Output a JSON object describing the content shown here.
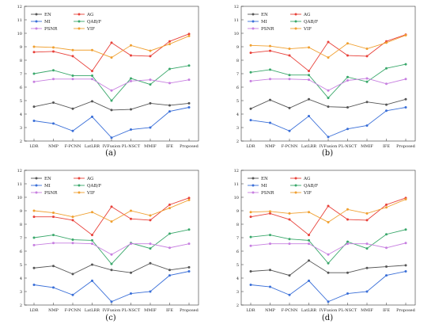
{
  "chart_data": [
    {
      "type": "line",
      "panel_label": "(a)",
      "categories": [
        "LDR",
        "NMP",
        "F-PCNN",
        "LatLRR",
        "IVFusion",
        "PL-NSCT",
        "MMIF",
        "IFE",
        "Proposed"
      ],
      "ylim": [
        2,
        12
      ],
      "yticks": [
        2,
        3,
        4,
        5,
        6,
        7,
        8,
        9,
        10,
        11,
        12
      ],
      "grid": false,
      "legend": "top-left",
      "series": [
        {
          "name": "EN",
          "color": "#555555",
          "values": [
            4.55,
            4.85,
            4.4,
            4.95,
            4.3,
            4.35,
            4.8,
            4.65,
            4.8
          ]
        },
        {
          "name": "AG",
          "color": "#e8413a",
          "values": [
            8.6,
            8.65,
            8.3,
            7.2,
            9.3,
            8.35,
            8.3,
            9.4,
            9.95
          ]
        },
        {
          "name": "MI",
          "color": "#3a6fd8",
          "values": [
            3.5,
            3.3,
            2.75,
            3.8,
            2.25,
            2.85,
            3.0,
            4.2,
            4.5
          ]
        },
        {
          "name": "QAB/F",
          "color": "#3aa86b",
          "values": [
            7.0,
            7.25,
            6.85,
            6.85,
            5.0,
            6.65,
            6.2,
            7.35,
            7.6
          ]
        },
        {
          "name": "PSNR",
          "color": "#c77fe0",
          "values": [
            6.4,
            6.6,
            6.6,
            6.6,
            5.75,
            6.45,
            6.55,
            6.3,
            6.55
          ]
        },
        {
          "name": "VIF",
          "color": "#f0a030",
          "values": [
            9.0,
            8.95,
            8.75,
            8.75,
            8.2,
            9.1,
            8.7,
            9.2,
            9.8
          ]
        }
      ]
    },
    {
      "type": "line",
      "panel_label": "(b)",
      "categories": [
        "LDR",
        "NMP",
        "F-PCNN",
        "LatLRR",
        "IVFusion",
        "PL-NSCT",
        "MMIF",
        "IFE",
        "Proposed"
      ],
      "ylim": [
        2,
        12
      ],
      "yticks": [
        2,
        3,
        4,
        5,
        6,
        7,
        8,
        9,
        10,
        11,
        12
      ],
      "grid": false,
      "legend": "top-left",
      "series": [
        {
          "name": "EN",
          "color": "#555555",
          "values": [
            4.4,
            5.05,
            4.45,
            5.1,
            4.55,
            4.5,
            4.9,
            4.7,
            5.1
          ]
        },
        {
          "name": "AG",
          "color": "#e8413a",
          "values": [
            8.55,
            8.7,
            8.35,
            7.2,
            9.35,
            8.35,
            8.3,
            9.4,
            9.9
          ]
        },
        {
          "name": "MI",
          "color": "#3a6fd8",
          "values": [
            3.55,
            3.35,
            2.75,
            3.85,
            2.3,
            2.9,
            3.15,
            4.25,
            4.5
          ]
        },
        {
          "name": "QAB/F",
          "color": "#3aa86b",
          "values": [
            7.1,
            7.3,
            6.9,
            6.9,
            5.2,
            6.75,
            6.4,
            7.4,
            7.7
          ]
        },
        {
          "name": "PSNR",
          "color": "#c77fe0",
          "values": [
            6.45,
            6.6,
            6.6,
            6.55,
            5.75,
            6.5,
            6.65,
            6.25,
            6.6
          ]
        },
        {
          "name": "VIF",
          "color": "#f0a030",
          "values": [
            9.1,
            9.05,
            8.85,
            8.95,
            8.2,
            9.25,
            8.85,
            9.3,
            9.85
          ]
        }
      ]
    },
    {
      "type": "line",
      "panel_label": "(c)",
      "categories": [
        "LDR",
        "NMP",
        "F-PCNN",
        "LatLRR",
        "IVFusion",
        "PL-NSCT",
        "MMIF",
        "IFE",
        "Proposed"
      ],
      "ylim": [
        2,
        12
      ],
      "yticks": [
        2,
        3,
        4,
        5,
        6,
        7,
        8,
        9,
        10,
        11,
        12
      ],
      "grid": false,
      "legend": "top-left",
      "series": [
        {
          "name": "EN",
          "color": "#555555",
          "values": [
            4.75,
            4.9,
            4.3,
            5.0,
            4.6,
            4.4,
            5.1,
            4.6,
            4.8
          ]
        },
        {
          "name": "AG",
          "color": "#e8413a",
          "values": [
            8.55,
            8.55,
            8.3,
            7.2,
            9.3,
            8.4,
            8.3,
            9.45,
            9.95
          ]
        },
        {
          "name": "MI",
          "color": "#3a6fd8",
          "values": [
            3.5,
            3.3,
            2.75,
            3.8,
            2.25,
            2.85,
            3.0,
            4.2,
            4.5
          ]
        },
        {
          "name": "QAB/F",
          "color": "#3aa86b",
          "values": [
            7.0,
            7.2,
            6.85,
            6.8,
            5.05,
            6.6,
            6.2,
            7.3,
            7.6
          ]
        },
        {
          "name": "PSNR",
          "color": "#c77fe0",
          "values": [
            6.45,
            6.6,
            6.6,
            6.55,
            5.75,
            6.55,
            6.55,
            6.25,
            6.55
          ]
        },
        {
          "name": "VIF",
          "color": "#f0a030",
          "values": [
            9.0,
            8.85,
            8.55,
            8.9,
            8.2,
            9.0,
            8.65,
            9.2,
            9.8
          ]
        }
      ]
    },
    {
      "type": "line",
      "panel_label": "(d)",
      "categories": [
        "LDR",
        "NMP",
        "F-PCNN",
        "LatLRR",
        "IVFusion",
        "PL-NSCT",
        "MMIF",
        "IFE",
        "Proposed"
      ],
      "ylim": [
        2,
        12
      ],
      "yticks": [
        2,
        3,
        4,
        5,
        6,
        7,
        8,
        9,
        10,
        11,
        12
      ],
      "grid": false,
      "legend": "top-left",
      "series": [
        {
          "name": "EN",
          "color": "#555555",
          "values": [
            4.5,
            4.6,
            4.2,
            5.3,
            4.4,
            4.4,
            4.75,
            4.85,
            4.95
          ]
        },
        {
          "name": "AG",
          "color": "#e8413a",
          "values": [
            8.55,
            8.8,
            8.35,
            7.2,
            9.35,
            8.35,
            8.3,
            9.45,
            9.95
          ]
        },
        {
          "name": "MI",
          "color": "#3a6fd8",
          "values": [
            3.5,
            3.35,
            2.75,
            3.8,
            2.25,
            2.85,
            3.0,
            4.2,
            4.5
          ]
        },
        {
          "name": "QAB/F",
          "color": "#3aa86b",
          "values": [
            7.05,
            7.2,
            6.9,
            6.8,
            5.1,
            6.7,
            6.2,
            7.25,
            7.6
          ]
        },
        {
          "name": "PSNR",
          "color": "#c77fe0",
          "values": [
            6.4,
            6.55,
            6.55,
            6.55,
            5.75,
            6.55,
            6.55,
            6.25,
            6.6
          ]
        },
        {
          "name": "VIF",
          "color": "#f0a030",
          "values": [
            8.9,
            8.95,
            8.8,
            8.9,
            8.15,
            9.1,
            8.8,
            9.25,
            9.85
          ]
        }
      ]
    }
  ]
}
